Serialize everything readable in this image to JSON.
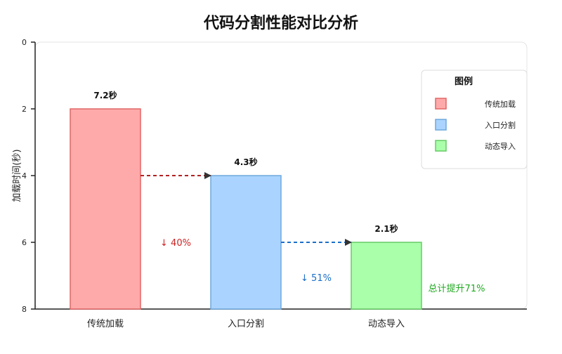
{
  "chart_data": {
    "type": "bar",
    "title": "代码分割性能对比分析",
    "ylabel": "加载时间(秒)",
    "xlabel": "",
    "y_ticks": [
      "0",
      "2",
      "4",
      "6",
      "8"
    ],
    "categories": [
      "传统加载",
      "入口分割",
      "动态导入"
    ],
    "values": [
      7.2,
      4.3,
      2.1
    ],
    "value_labels": [
      "7.2秒",
      "4.3秒",
      "2.1秒"
    ],
    "bar_tops": [
      2,
      4,
      6
    ],
    "ylim": [
      0,
      8
    ],
    "y_inverted": true,
    "grid": false,
    "colors": {
      "fills": [
        "#ffaaaa",
        "#aad4ff",
        "#aaffaa"
      ],
      "strokes": [
        "#e06666",
        "#6fa8dc",
        "#66cc66"
      ],
      "arrow_red": "#b22222",
      "arrow_blue": "#1a6fc9",
      "arrow_head": "#333333",
      "total_green": "#22aa22"
    },
    "annotations": {
      "drop1": "↓ 40%",
      "drop2": "↓ 51%",
      "total": "总计提升71%"
    },
    "legend": {
      "title": "图例",
      "position": "top-right",
      "items": [
        "传统加载",
        "入口分割",
        "动态导入"
      ]
    }
  }
}
